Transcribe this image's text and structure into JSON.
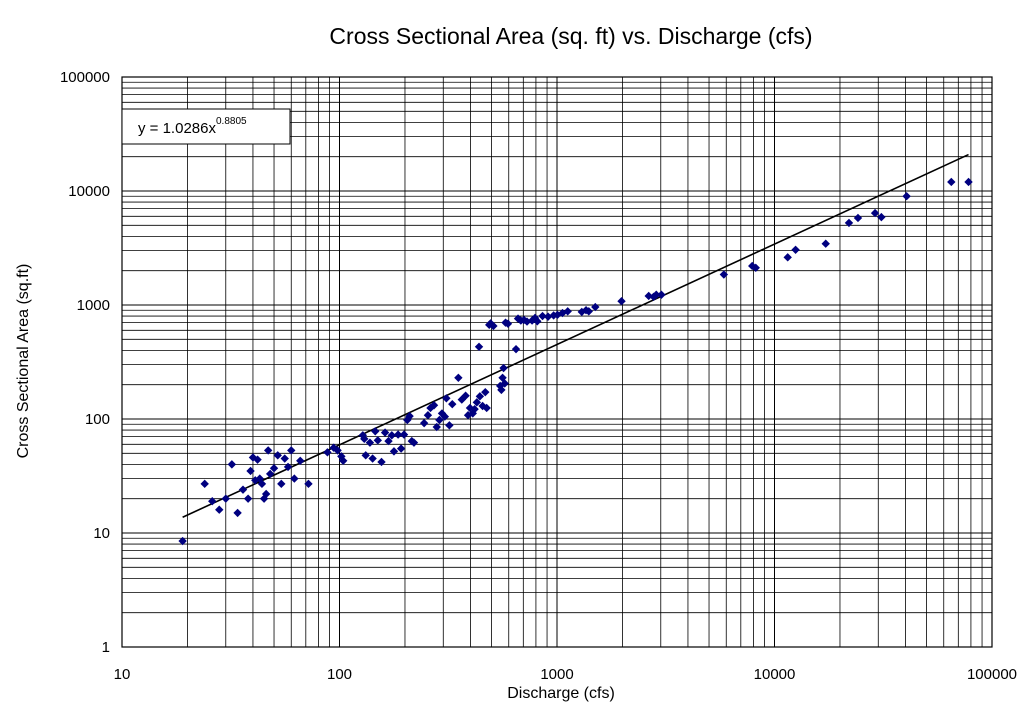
{
  "chart_data": {
    "type": "scatter",
    "title": "Cross Sectional Area (sq. ft) vs. Discharge (cfs)",
    "xlabel": "Discharge (cfs)",
    "ylabel": "Cross Sectional Area (sq.ft)",
    "xscale": "log",
    "yscale": "log",
    "xlim": [
      10,
      100000
    ],
    "ylim": [
      1,
      100000
    ],
    "x_ticks": [
      "10",
      "100",
      "1000",
      "10000",
      "100000"
    ],
    "y_ticks": [
      "1",
      "10",
      "100",
      "1000",
      "10000",
      "100000"
    ],
    "grid": true,
    "legend": "none",
    "point_color": "#000080",
    "trendline": {
      "equation_base": "y = 1.0286x",
      "equation_exponent": "0.8805",
      "coefficient": 1.0286,
      "exponent": 0.8805,
      "x_range": [
        19,
        78000
      ],
      "color": "#000000"
    },
    "points": [
      [
        19,
        8.5
      ],
      [
        24,
        27
      ],
      [
        26,
        19
      ],
      [
        28,
        16
      ],
      [
        30,
        20
      ],
      [
        32,
        40
      ],
      [
        34,
        15
      ],
      [
        36,
        24
      ],
      [
        38,
        20
      ],
      [
        39,
        35
      ],
      [
        40,
        46
      ],
      [
        41,
        29
      ],
      [
        42,
        44
      ],
      [
        43,
        30
      ],
      [
        44,
        27
      ],
      [
        45,
        20
      ],
      [
        46,
        22
      ],
      [
        47,
        53
      ],
      [
        48,
        33
      ],
      [
        50,
        37
      ],
      [
        52,
        48
      ],
      [
        54,
        27
      ],
      [
        56,
        45
      ],
      [
        58,
        38
      ],
      [
        60,
        53
      ],
      [
        62,
        30
      ],
      [
        66,
        43
      ],
      [
        72,
        27
      ],
      [
        88,
        51
      ],
      [
        94,
        56
      ],
      [
        98,
        53
      ],
      [
        102,
        47
      ],
      [
        104,
        43
      ],
      [
        128,
        72
      ],
      [
        130,
        67
      ],
      [
        132,
        48
      ],
      [
        138,
        62
      ],
      [
        142,
        45
      ],
      [
        146,
        78
      ],
      [
        150,
        65
      ],
      [
        156,
        42
      ],
      [
        162,
        76
      ],
      [
        168,
        64
      ],
      [
        174,
        72
      ],
      [
        178,
        52
      ],
      [
        186,
        73
      ],
      [
        192,
        55
      ],
      [
        198,
        73
      ],
      [
        205,
        98
      ],
      [
        210,
        106
      ],
      [
        215,
        64
      ],
      [
        220,
        62
      ],
      [
        245,
        92
      ],
      [
        255,
        108
      ],
      [
        262,
        125
      ],
      [
        272,
        132
      ],
      [
        280,
        85
      ],
      [
        288,
        98
      ],
      [
        296,
        112
      ],
      [
        305,
        105
      ],
      [
        310,
        152
      ],
      [
        320,
        88
      ],
      [
        330,
        135
      ],
      [
        352,
        230
      ],
      [
        365,
        148
      ],
      [
        380,
        160
      ],
      [
        390,
        108
      ],
      [
        398,
        125
      ],
      [
        410,
        112
      ],
      [
        418,
        122
      ],
      [
        428,
        140
      ],
      [
        438,
        430
      ],
      [
        442,
        158
      ],
      [
        455,
        130
      ],
      [
        468,
        172
      ],
      [
        475,
        125
      ],
      [
        488,
        670
      ],
      [
        495,
        690
      ],
      [
        510,
        655
      ],
      [
        548,
        195
      ],
      [
        555,
        180
      ],
      [
        562,
        230
      ],
      [
        568,
        280
      ],
      [
        575,
        205
      ],
      [
        580,
        700
      ],
      [
        595,
        685
      ],
      [
        648,
        410
      ],
      [
        662,
        760
      ],
      [
        682,
        730
      ],
      [
        705,
        740
      ],
      [
        728,
        715
      ],
      [
        768,
        730
      ],
      [
        792,
        770
      ],
      [
        812,
        720
      ],
      [
        858,
        800
      ],
      [
        910,
        790
      ],
      [
        965,
        810
      ],
      [
        1005,
        820
      ],
      [
        1060,
        850
      ],
      [
        1120,
        880
      ],
      [
        1300,
        870
      ],
      [
        1360,
        900
      ],
      [
        1400,
        880
      ],
      [
        1500,
        960
      ],
      [
        1980,
        1080
      ],
      [
        2640,
        1200
      ],
      [
        2780,
        1180
      ],
      [
        2860,
        1230
      ],
      [
        3020,
        1230
      ],
      [
        5850,
        1850
      ],
      [
        7900,
        2200
      ],
      [
        8200,
        2120
      ],
      [
        11500,
        2620
      ],
      [
        12500,
        3050
      ],
      [
        17200,
        3450
      ],
      [
        22000,
        5250
      ],
      [
        24200,
        5800
      ],
      [
        29000,
        6400
      ],
      [
        31000,
        5900
      ],
      [
        40500,
        9000
      ],
      [
        65000,
        12000
      ],
      [
        78000,
        12000
      ]
    ]
  }
}
